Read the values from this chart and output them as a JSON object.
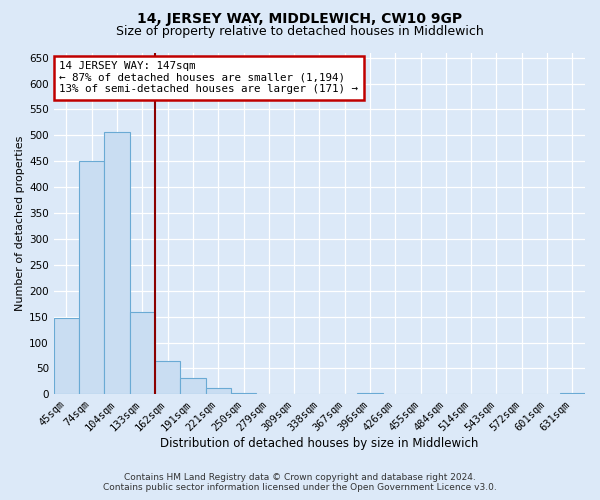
{
  "title": "14, JERSEY WAY, MIDDLEWICH, CW10 9GP",
  "subtitle": "Size of property relative to detached houses in Middlewich",
  "xlabel": "Distribution of detached houses by size in Middlewich",
  "ylabel": "Number of detached properties",
  "bar_labels": [
    "45sqm",
    "74sqm",
    "104sqm",
    "133sqm",
    "162sqm",
    "191sqm",
    "221sqm",
    "250sqm",
    "279sqm",
    "309sqm",
    "338sqm",
    "367sqm",
    "396sqm",
    "426sqm",
    "455sqm",
    "484sqm",
    "514sqm",
    "543sqm",
    "572sqm",
    "601sqm",
    "631sqm"
  ],
  "bar_values": [
    148,
    450,
    507,
    160,
    65,
    32,
    12,
    3,
    0,
    0,
    0,
    0,
    2,
    0,
    0,
    0,
    0,
    0,
    0,
    0,
    3
  ],
  "bar_color": "#c9ddf2",
  "bar_edge_color": "#6aaad4",
  "vline_color": "#8b0000",
  "annotation_text": "14 JERSEY WAY: 147sqm\n← 87% of detached houses are smaller (1,194)\n13% of semi-detached houses are larger (171) →",
  "annotation_box_color": "#c00000",
  "ylim": [
    0,
    660
  ],
  "yticks": [
    0,
    50,
    100,
    150,
    200,
    250,
    300,
    350,
    400,
    450,
    500,
    550,
    600,
    650
  ],
  "footer_line1": "Contains HM Land Registry data © Crown copyright and database right 2024.",
  "footer_line2": "Contains public sector information licensed under the Open Government Licence v3.0.",
  "bg_color": "#dce9f8",
  "plot_bg_color": "#dce9f8",
  "title_fontsize": 10,
  "subtitle_fontsize": 9,
  "xlabel_fontsize": 8.5,
  "ylabel_fontsize": 8.0,
  "annotation_fontsize": 7.8,
  "tick_fontsize": 7.5,
  "footer_fontsize": 6.5
}
